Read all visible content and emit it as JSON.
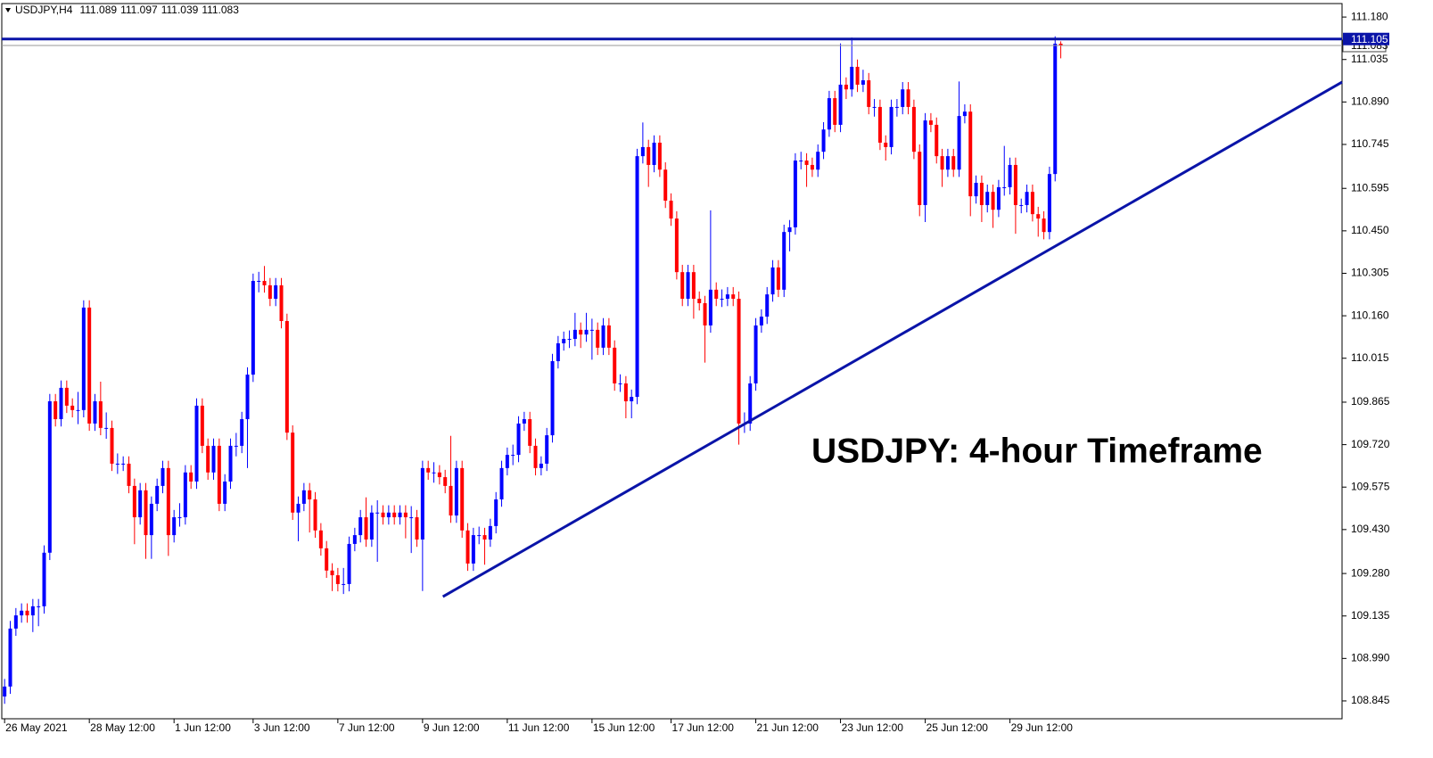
{
  "chart_data": {
    "type": "candlestick",
    "title": "USDJPY,H4",
    "annotation": "USDJPY: 4-hour Timeframe",
    "up_color": "#0000ff",
    "down_color": "#ff0000",
    "line_color": "#0a14a8",
    "ylim": [
      108.784,
      111.226
    ],
    "yticks": [
      {
        "value": 111.18,
        "label": "111.180"
      },
      111.035,
      {
        "value": 110.89,
        "label": "110.890"
      },
      110.745,
      110.595,
      {
        "value": 110.45,
        "label": "110.450"
      },
      110.305,
      {
        "value": 110.16,
        "label": "110.160"
      },
      110.015,
      109.865,
      {
        "value": 109.72,
        "label": "109.720"
      },
      109.575,
      {
        "value": 109.43,
        "label": "109.430"
      },
      {
        "value": 109.28,
        "label": "109.280"
      },
      109.135,
      {
        "value": 108.99,
        "label": "108.990"
      },
      108.845
    ],
    "xlim": [
      -0.5,
      236.8
    ],
    "xticks": [
      {
        "value": 0,
        "label": "26 May 2021"
      },
      {
        "value": 15,
        "label": "28 May 12:00"
      },
      {
        "value": 30,
        "label": "1 Jun 12:00"
      },
      {
        "value": 44,
        "label": "3 Jun 12:00"
      },
      {
        "value": 59,
        "label": "7 Jun 12:00"
      },
      {
        "value": 74,
        "label": "9 Jun 12:00"
      },
      {
        "value": 89,
        "label": "11 Jun 12:00"
      },
      {
        "value": 104,
        "label": "15 Jun 12:00"
      },
      {
        "value": 118,
        "label": "17 Jun 12:00"
      },
      {
        "value": 133,
        "label": "21 Jun 12:00"
      },
      {
        "value": 148,
        "label": "23 Jun 12:00"
      },
      {
        "value": 163,
        "label": "25 Jun 12:00"
      },
      {
        "value": 178,
        "label": "29 Jun 12:00"
      }
    ],
    "hline": 111.105,
    "trendline": {
      "x": [
        77.6,
        236.8
      ],
      "y": [
        109.201,
        110.958
      ]
    },
    "open": [
      108.86,
      108.894,
      109.092,
      109.137,
      109.153,
      109.137,
      109.168,
      109.168,
      109.351,
      109.868,
      109.807,
      109.914,
      109.853,
      109.838,
      109.838,
      110.188,
      109.792,
      109.868,
      109.777,
      109.777,
      109.655,
      109.655,
      109.655,
      109.579,
      109.472,
      109.564,
      109.411,
      109.518,
      109.579,
      109.64,
      109.411,
      109.472,
      109.472,
      109.625,
      109.594,
      109.853,
      109.716,
      109.625,
      109.716,
      109.518,
      109.594,
      109.716,
      109.716,
      109.807,
      109.959,
      110.279,
      110.279,
      110.264,
      110.218,
      110.264,
      110.142,
      109.761,
      109.488,
      109.518,
      109.564,
      109.533,
      109.427,
      109.366,
      109.29,
      109.274,
      109.244,
      109.244,
      109.381,
      109.411,
      109.472,
      109.396,
      109.488,
      109.488,
      109.472,
      109.488,
      109.472,
      109.488,
      109.472,
      109.472,
      109.396,
      109.64,
      109.625,
      109.625,
      109.609,
      109.579,
      109.478,
      109.64,
      109.427,
      109.314,
      109.411,
      109.411,
      109.396,
      109.442,
      109.533,
      109.64,
      109.685,
      109.685,
      109.792,
      109.807,
      109.716,
      109.64,
      109.655,
      109.752,
      110.005,
      110.066,
      110.081,
      110.081,
      110.112,
      110.096,
      110.112,
      110.112,
      110.051,
      110.127,
      110.051,
      109.929,
      109.929,
      109.868,
      109.883,
      110.705,
      110.736,
      110.675,
      110.751,
      110.659,
      110.553,
      110.492,
      110.309,
      110.218,
      110.309,
      110.218,
      110.203,
      110.127,
      110.249,
      110.218,
      110.218,
      110.233,
      110.218,
      109.792,
      109.792,
      109.929,
      110.127,
      110.157,
      110.233,
      110.325,
      110.249,
      110.446,
      110.462,
      110.69,
      110.69,
      110.675,
      110.659,
      110.72,
      110.796,
      110.903,
      110.812,
      110.949,
      110.933,
      111.01,
      110.949,
      110.964,
      110.873,
      110.873,
      110.751,
      110.736,
      110.873,
      110.873,
      110.933,
      110.873,
      110.72,
      110.538,
      110.827,
      110.812,
      110.705,
      110.659,
      110.705,
      110.659,
      110.842,
      110.857,
      110.568,
      110.614,
      110.538,
      110.583,
      110.522,
      110.599,
      110.599,
      110.675,
      110.538,
      110.538,
      110.583,
      110.507,
      110.492,
      110.446,
      110.644,
      111.089
    ],
    "high": [
      108.92,
      109.118,
      109.162,
      109.178,
      109.178,
      109.193,
      109.193,
      109.376,
      109.893,
      109.893,
      109.939,
      109.939,
      109.878,
      109.9,
      110.213,
      110.213,
      109.893,
      109.935,
      109.83,
      109.802,
      109.69,
      109.68,
      109.68,
      109.604,
      109.589,
      109.589,
      109.543,
      109.604,
      109.665,
      109.665,
      109.497,
      109.52,
      109.65,
      109.65,
      109.878,
      109.878,
      109.741,
      109.741,
      109.741,
      109.619,
      109.741,
      109.76,
      109.832,
      109.984,
      110.304,
      110.31,
      110.33,
      110.289,
      110.289,
      110.289,
      110.167,
      109.786,
      109.543,
      109.589,
      109.589,
      109.558,
      109.452,
      109.391,
      109.315,
      109.299,
      109.299,
      109.406,
      109.436,
      109.497,
      109.54,
      109.513,
      109.53,
      109.513,
      109.513,
      109.513,
      109.513,
      109.513,
      109.51,
      109.497,
      109.665,
      109.665,
      109.66,
      109.65,
      109.634,
      109.75,
      109.665,
      109.665,
      109.452,
      109.436,
      109.44,
      109.436,
      109.467,
      109.558,
      109.665,
      109.71,
      109.72,
      109.817,
      109.832,
      109.832,
      109.741,
      109.68,
      109.777,
      110.03,
      110.091,
      110.106,
      110.11,
      110.17,
      110.137,
      110.17,
      110.15,
      110.137,
      110.152,
      110.152,
      110.076,
      109.96,
      109.954,
      109.908,
      110.73,
      110.82,
      110.761,
      110.776,
      110.776,
      110.684,
      110.578,
      110.517,
      110.334,
      110.334,
      110.334,
      110.243,
      110.228,
      110.52,
      110.274,
      110.25,
      110.258,
      110.258,
      110.243,
      109.83,
      109.954,
      110.152,
      110.182,
      110.258,
      110.35,
      110.35,
      110.471,
      110.487,
      110.715,
      110.72,
      110.715,
      110.7,
      110.745,
      110.821,
      110.928,
      110.928,
      111.09,
      110.974,
      111.11,
      111.035,
      111,
      110.989,
      110.9,
      110.898,
      110.776,
      110.898,
      110.9,
      110.958,
      110.958,
      110.898,
      110.745,
      110.852,
      110.852,
      110.837,
      110.73,
      110.73,
      110.73,
      110.96,
      110.882,
      110.882,
      110.639,
      110.639,
      110.608,
      110.608,
      110.624,
      110.74,
      110.7,
      110.7,
      110.56,
      110.608,
      110.608,
      110.532,
      110.517,
      110.669,
      111.114,
      111.097
    ],
    "low": [
      108.835,
      108.869,
      109.067,
      109.112,
      109.112,
      109.08,
      109.1,
      109.143,
      109.326,
      109.782,
      109.782,
      109.828,
      109.813,
      109.79,
      109.813,
      109.767,
      109.767,
      109.752,
      109.74,
      109.63,
      109.62,
      109.63,
      109.554,
      109.38,
      109.447,
      109.33,
      109.33,
      109.493,
      109.554,
      109.34,
      109.386,
      109.44,
      109.447,
      109.569,
      109.569,
      109.691,
      109.6,
      109.6,
      109.493,
      109.493,
      109.569,
      109.68,
      109.691,
      109.64,
      109.934,
      110.24,
      110.239,
      110.193,
      110.193,
      110.117,
      109.736,
      109.463,
      109.39,
      109.493,
      109.42,
      109.402,
      109.341,
      109.265,
      109.22,
      109.219,
      109.21,
      109.219,
      109.356,
      109.386,
      109.371,
      109.371,
      109.32,
      109.447,
      109.447,
      109.447,
      109.447,
      109.4,
      109.35,
      109.371,
      109.22,
      109.6,
      109.59,
      109.584,
      109.554,
      109.453,
      109.453,
      109.402,
      109.289,
      109.289,
      109.38,
      109.31,
      109.371,
      109.417,
      109.508,
      109.615,
      109.65,
      109.66,
      109.767,
      109.691,
      109.615,
      109.615,
      109.63,
      109.727,
      109.98,
      110.041,
      110.05,
      110.056,
      110.05,
      110.071,
      110.01,
      110.026,
      110.026,
      110.026,
      109.904,
      109.9,
      109.81,
      109.81,
      109.858,
      110.68,
      110.6,
      110.65,
      110.634,
      110.528,
      110.467,
      110.284,
      110.193,
      110.193,
      110.15,
      110.178,
      110,
      110.102,
      110.193,
      110.19,
      110.193,
      110.193,
      109.72,
      109.76,
      109.767,
      109.904,
      110.102,
      110.132,
      110.208,
      110.224,
      110.224,
      110.38,
      110.437,
      110.66,
      110.6,
      110.634,
      110.634,
      110.695,
      110.771,
      110.787,
      110.787,
      110.9,
      110.908,
      110.924,
      110.924,
      110.848,
      110.84,
      110.726,
      110.69,
      110.711,
      110.84,
      110.848,
      110.848,
      110.695,
      110.5,
      110.48,
      110.787,
      110.68,
      110.6,
      110.634,
      110.634,
      110.634,
      110.817,
      110.5,
      110.543,
      110.48,
      110.513,
      110.46,
      110.497,
      110.57,
      110.574,
      110.44,
      110.51,
      110.513,
      110.482,
      110.43,
      110.421,
      110.421,
      110.619,
      111.039
    ],
    "close": [
      108.894,
      109.092,
      109.137,
      109.153,
      109.137,
      109.168,
      109.168,
      109.351,
      109.868,
      109.807,
      109.914,
      109.853,
      109.838,
      109.838,
      110.188,
      109.792,
      109.868,
      109.777,
      109.777,
      109.655,
      109.655,
      109.655,
      109.579,
      109.472,
      109.564,
      109.411,
      109.518,
      109.579,
      109.64,
      109.411,
      109.472,
      109.472,
      109.625,
      109.594,
      109.853,
      109.716,
      109.625,
      109.716,
      109.518,
      109.594,
      109.716,
      109.716,
      109.807,
      109.959,
      110.279,
      110.279,
      110.264,
      110.218,
      110.264,
      110.142,
      109.761,
      109.488,
      109.518,
      109.564,
      109.533,
      109.427,
      109.366,
      109.29,
      109.274,
      109.244,
      109.244,
      109.381,
      109.411,
      109.472,
      109.396,
      109.488,
      109.488,
      109.472,
      109.488,
      109.472,
      109.488,
      109.472,
      109.472,
      109.396,
      109.64,
      109.625,
      109.625,
      109.609,
      109.579,
      109.478,
      109.64,
      109.427,
      109.314,
      109.411,
      109.411,
      109.396,
      109.442,
      109.533,
      109.64,
      109.685,
      109.685,
      109.792,
      109.807,
      109.716,
      109.64,
      109.655,
      109.752,
      110.005,
      110.066,
      110.081,
      110.081,
      110.112,
      110.096,
      110.112,
      110.112,
      110.051,
      110.127,
      110.051,
      109.929,
      109.929,
      109.868,
      109.883,
      110.705,
      110.736,
      110.675,
      110.751,
      110.659,
      110.553,
      110.492,
      110.309,
      110.218,
      110.309,
      110.218,
      110.203,
      110.127,
      110.249,
      110.218,
      110.218,
      110.233,
      110.218,
      109.792,
      109.792,
      109.929,
      110.127,
      110.157,
      110.233,
      110.325,
      110.249,
      110.446,
      110.462,
      110.69,
      110.69,
      110.675,
      110.659,
      110.72,
      110.796,
      110.903,
      110.812,
      110.949,
      110.933,
      111.01,
      110.949,
      110.964,
      110.873,
      110.873,
      110.751,
      110.736,
      110.873,
      110.873,
      110.933,
      110.873,
      110.72,
      110.538,
      110.827,
      110.812,
      110.705,
      110.659,
      110.705,
      110.659,
      110.842,
      110.857,
      110.568,
      110.614,
      110.538,
      110.583,
      110.522,
      110.599,
      110.599,
      110.675,
      110.538,
      110.538,
      110.583,
      110.507,
      110.492,
      110.446,
      110.644,
      111.089,
      111.083
    ]
  }
}
